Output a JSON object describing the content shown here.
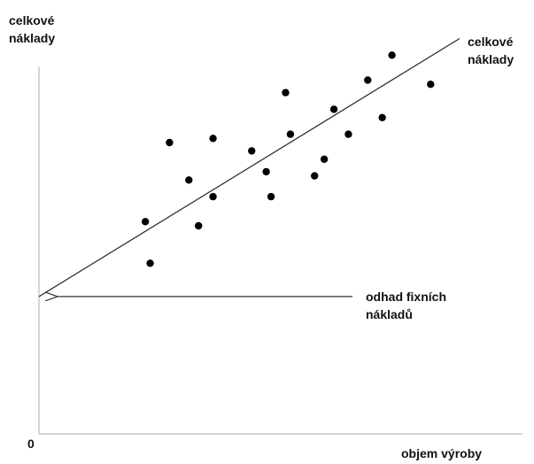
{
  "chart_data": {
    "type": "scatter",
    "ylabel": [
      "celkové",
      "náklady"
    ],
    "xlabel": "objem výroby",
    "origin_label": "0",
    "xlim": [
      0,
      100
    ],
    "ylim": [
      0,
      100
    ],
    "grid": false,
    "points": [
      {
        "x": 22,
        "y": 51
      },
      {
        "x": 23,
        "y": 41
      },
      {
        "x": 27,
        "y": 70
      },
      {
        "x": 31,
        "y": 61
      },
      {
        "x": 33,
        "y": 50
      },
      {
        "x": 36,
        "y": 57
      },
      {
        "x": 36,
        "y": 71
      },
      {
        "x": 44,
        "y": 68
      },
      {
        "x": 47,
        "y": 63
      },
      {
        "x": 48,
        "y": 57
      },
      {
        "x": 51,
        "y": 82
      },
      {
        "x": 52,
        "y": 72
      },
      {
        "x": 57,
        "y": 62
      },
      {
        "x": 59,
        "y": 66
      },
      {
        "x": 61,
        "y": 78
      },
      {
        "x": 64,
        "y": 72
      },
      {
        "x": 68,
        "y": 85
      },
      {
        "x": 71,
        "y": 76
      },
      {
        "x": 73,
        "y": 91
      },
      {
        "x": 81,
        "y": 84
      }
    ],
    "trend_line": {
      "label": [
        "celkové",
        "náklady"
      ],
      "start": {
        "x": 0,
        "y": 33
      },
      "end": {
        "x": 87,
        "y": 95
      }
    },
    "annotations": [
      {
        "text": [
          "odhad fixních",
          "nákladů"
        ],
        "arrow_to": {
          "x": 0,
          "y": 33
        }
      }
    ]
  }
}
